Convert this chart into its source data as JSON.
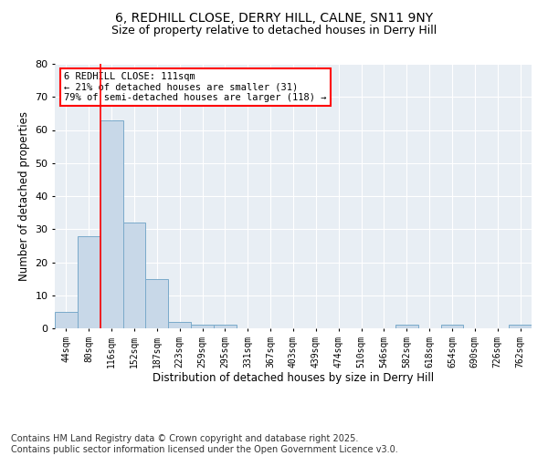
{
  "title_line1": "6, REDHILL CLOSE, DERRY HILL, CALNE, SN11 9NY",
  "title_line2": "Size of property relative to detached houses in Derry Hill",
  "xlabel": "Distribution of detached houses by size in Derry Hill",
  "ylabel": "Number of detached properties",
  "bar_color": "#c8d8e8",
  "bar_edge_color": "#7aaaca",
  "background_color": "#e8eef4",
  "categories": [
    "44sqm",
    "80sqm",
    "116sqm",
    "152sqm",
    "187sqm",
    "223sqm",
    "259sqm",
    "295sqm",
    "331sqm",
    "367sqm",
    "403sqm",
    "439sqm",
    "474sqm",
    "510sqm",
    "546sqm",
    "582sqm",
    "618sqm",
    "654sqm",
    "690sqm",
    "726sqm",
    "762sqm"
  ],
  "values": [
    5,
    28,
    63,
    32,
    15,
    2,
    1,
    1,
    0,
    0,
    0,
    0,
    0,
    0,
    0,
    1,
    0,
    1,
    0,
    0,
    1
  ],
  "ylim": [
    0,
    80
  ],
  "yticks": [
    0,
    10,
    20,
    30,
    40,
    50,
    60,
    70,
    80
  ],
  "redline_bin": 2,
  "annotation_text": "6 REDHILL CLOSE: 111sqm\n← 21% of detached houses are smaller (31)\n79% of semi-detached houses are larger (118) →",
  "annotation_box_color": "white",
  "annotation_box_edge": "red",
  "footnote": "Contains HM Land Registry data © Crown copyright and database right 2025.\nContains public sector information licensed under the Open Government Licence v3.0.",
  "footnote_fontsize": 7,
  "title_fontsize1": 10,
  "title_fontsize2": 9,
  "xlabel_fontsize": 8.5,
  "ylabel_fontsize": 8.5,
  "tick_fontsize": 7,
  "ytick_fontsize": 8
}
